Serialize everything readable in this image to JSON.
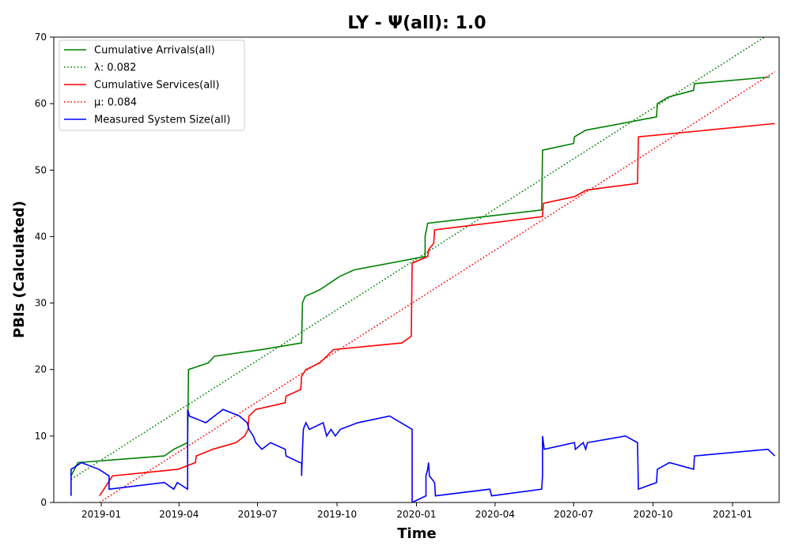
{
  "chart_data": {
    "type": "line",
    "title": "LY -  Ψ(all): 1.0",
    "xlabel": "Time",
    "ylabel": "PBIs (Calculated)",
    "xlim": [
      "2018-11-07",
      "2021-02-24"
    ],
    "ylim": [
      0,
      70
    ],
    "x_ticks": [
      "2019-01",
      "2019-04",
      "2019-07",
      "2019-10",
      "2020-01",
      "2020-04",
      "2020-07",
      "2020-10",
      "2021-01"
    ],
    "y_ticks": [
      0,
      10,
      20,
      30,
      40,
      50,
      60,
      70
    ],
    "grid": false,
    "legend_position": "top-left",
    "series": [
      {
        "name": "Cumulative Arrivals(all)",
        "color": "#008000",
        "style": "solid",
        "points": [
          [
            "2018-11-27",
            4
          ],
          [
            "2018-12-05",
            6
          ],
          [
            "2019-03-15",
            7
          ],
          [
            "2019-03-26",
            8
          ],
          [
            "2019-04-11",
            9
          ],
          [
            "2019-04-12",
            20
          ],
          [
            "2019-05-05",
            21
          ],
          [
            "2019-05-12",
            22
          ],
          [
            "2019-07-06",
            23
          ],
          [
            "2019-08-21",
            24
          ],
          [
            "2019-08-22",
            30
          ],
          [
            "2019-08-25",
            31
          ],
          [
            "2019-09-11",
            32
          ],
          [
            "2019-10-04",
            34
          ],
          [
            "2019-10-21",
            35
          ],
          [
            "2020-01-11",
            37
          ],
          [
            "2020-01-11",
            40
          ],
          [
            "2020-01-14",
            42
          ],
          [
            "2020-05-25",
            44
          ],
          [
            "2020-05-26",
            53
          ],
          [
            "2020-07-01",
            54
          ],
          [
            "2020-07-02",
            55
          ],
          [
            "2020-07-15",
            56
          ],
          [
            "2020-10-05",
            58
          ],
          [
            "2020-10-06",
            60
          ],
          [
            "2020-10-19",
            61
          ],
          [
            "2020-11-17",
            62
          ],
          [
            "2020-11-18",
            63
          ],
          [
            "2021-02-13",
            64
          ]
        ]
      },
      {
        "name": "λ: 0.082",
        "color": "#008000",
        "style": "dotted",
        "points": [
          [
            "2018-11-27",
            3.5
          ],
          [
            "2021-02-13",
            70.5
          ]
        ]
      },
      {
        "name": "Cumulative Services(all)",
        "color": "#ff0000",
        "style": "solid",
        "points": [
          [
            "2018-12-30",
            1
          ],
          [
            "2019-01-14",
            4
          ],
          [
            "2019-03-31",
            5
          ],
          [
            "2019-04-20",
            6
          ],
          [
            "2019-04-21",
            7
          ],
          [
            "2019-05-10",
            8
          ],
          [
            "2019-06-06",
            9
          ],
          [
            "2019-06-16",
            10
          ],
          [
            "2019-06-20",
            11
          ],
          [
            "2019-06-21",
            13
          ],
          [
            "2019-06-29",
            14
          ],
          [
            "2019-08-02",
            15
          ],
          [
            "2019-08-03",
            16
          ],
          [
            "2019-08-20",
            17
          ],
          [
            "2019-08-21",
            19
          ],
          [
            "2019-08-26",
            20
          ],
          [
            "2019-09-11",
            21
          ],
          [
            "2019-09-27",
            23
          ],
          [
            "2019-12-15",
            24
          ],
          [
            "2019-12-26",
            25
          ],
          [
            "2019-12-27",
            36
          ],
          [
            "2020-01-14",
            37
          ],
          [
            "2020-01-15",
            38
          ],
          [
            "2020-01-21",
            39
          ],
          [
            "2020-01-22",
            41
          ],
          [
            "2020-05-26",
            43
          ],
          [
            "2020-05-27",
            45
          ],
          [
            "2020-07-02",
            46
          ],
          [
            "2020-07-16",
            47
          ],
          [
            "2020-09-13",
            48
          ],
          [
            "2020-09-14",
            55
          ],
          [
            "2021-02-19",
            57
          ]
        ]
      },
      {
        "name": "μ: 0.084",
        "color": "#ff0000",
        "style": "dotted",
        "points": [
          [
            "2018-12-30",
            0
          ],
          [
            "2021-02-19",
            64.8
          ]
        ]
      },
      {
        "name": "Measured System Size(all)",
        "color": "#0000ff",
        "style": "solid",
        "points": [
          [
            "2018-11-27",
            1
          ],
          [
            "2018-11-27",
            5
          ],
          [
            "2018-12-01",
            5.3
          ],
          [
            "2018-12-09",
            6
          ],
          [
            "2018-12-29",
            5
          ],
          [
            "2019-01-10",
            4
          ],
          [
            "2019-01-10",
            2
          ],
          [
            "2019-03-15",
            3
          ],
          [
            "2019-03-26",
            2
          ],
          [
            "2019-03-30",
            3
          ],
          [
            "2019-04-11",
            2
          ],
          [
            "2019-04-11",
            14
          ],
          [
            "2019-04-13",
            13
          ],
          [
            "2019-05-02",
            12
          ],
          [
            "2019-05-12",
            13
          ],
          [
            "2019-05-22",
            14
          ],
          [
            "2019-06-10",
            13
          ],
          [
            "2019-06-19",
            12
          ],
          [
            "2019-06-21",
            11
          ],
          [
            "2019-06-26",
            10
          ],
          [
            "2019-06-29",
            9
          ],
          [
            "2019-07-06",
            8
          ],
          [
            "2019-07-16",
            9
          ],
          [
            "2019-08-02",
            8
          ],
          [
            "2019-08-03",
            7
          ],
          [
            "2019-08-19",
            6
          ],
          [
            "2019-08-21",
            6
          ],
          [
            "2019-08-21",
            4
          ],
          [
            "2019-08-22",
            8
          ],
          [
            "2019-08-23",
            11
          ],
          [
            "2019-08-26",
            12
          ],
          [
            "2019-08-30",
            11
          ],
          [
            "2019-09-15",
            12
          ],
          [
            "2019-09-19",
            10
          ],
          [
            "2019-09-24",
            11
          ],
          [
            "2019-09-29",
            10
          ],
          [
            "2019-10-05",
            11
          ],
          [
            "2019-10-25",
            12
          ],
          [
            "2019-12-01",
            13
          ],
          [
            "2019-12-27",
            11
          ],
          [
            "2019-12-27",
            0
          ],
          [
            "2020-01-12",
            1
          ],
          [
            "2020-01-12",
            4
          ],
          [
            "2020-01-14",
            5
          ],
          [
            "2020-01-15",
            6
          ],
          [
            "2020-01-16",
            4
          ],
          [
            "2020-01-22",
            3
          ],
          [
            "2020-01-23",
            1
          ],
          [
            "2020-03-26",
            2
          ],
          [
            "2020-03-28",
            1
          ],
          [
            "2020-05-25",
            2
          ],
          [
            "2020-05-26",
            4
          ],
          [
            "2020-05-26",
            10
          ],
          [
            "2020-05-28",
            8
          ],
          [
            "2020-07-02",
            9
          ],
          [
            "2020-07-03",
            8
          ],
          [
            "2020-07-12",
            9
          ],
          [
            "2020-07-15",
            8
          ],
          [
            "2020-07-17",
            9
          ],
          [
            "2020-08-30",
            10
          ],
          [
            "2020-09-13",
            9
          ],
          [
            "2020-09-14",
            2
          ],
          [
            "2020-10-05",
            3
          ],
          [
            "2020-10-06",
            5
          ],
          [
            "2020-10-20",
            6
          ],
          [
            "2020-11-17",
            5
          ],
          [
            "2020-11-18",
            7
          ],
          [
            "2021-02-11",
            8
          ],
          [
            "2021-02-19",
            7
          ]
        ]
      }
    ]
  }
}
